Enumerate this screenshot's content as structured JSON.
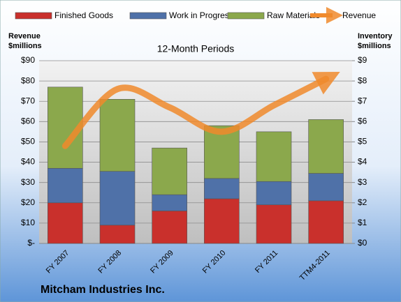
{
  "chart_data": {
    "type": "stacked-bar-line",
    "title": "12-Month Periods",
    "company": "Mitcham Industries Inc.",
    "y_label": "Revenue $millions",
    "y2_label": "Inventory $millions",
    "categories": [
      "FY 2007",
      "FY 2008",
      "FY 2009",
      "FY 2010",
      "FY 2011",
      "TTM4-2011"
    ],
    "series": [
      {
        "name": "Finished Goods",
        "color": "#c9302c",
        "type": "bar",
        "axis": "y2",
        "values": [
          2.0,
          0.9,
          1.6,
          2.2,
          1.9,
          2.1
        ]
      },
      {
        "name": "Work in Progress",
        "color": "#4f71a8",
        "type": "bar",
        "axis": "y2",
        "values": [
          1.7,
          2.65,
          0.8,
          1.0,
          1.15,
          1.35
        ]
      },
      {
        "name": "Raw Materials",
        "color": "#8ba84c",
        "type": "bar",
        "axis": "y2",
        "values": [
          4.0,
          3.55,
          2.3,
          2.6,
          2.45,
          2.65
        ]
      },
      {
        "name": "Revenue",
        "color": "#f08a2c",
        "type": "line",
        "axis": "y",
        "values": [
          48,
          76,
          67,
          55,
          68,
          81
        ]
      }
    ],
    "ylim": [
      0,
      90
    ],
    "yticks": [
      {
        "value": 0,
        "label": "$-"
      },
      {
        "value": 10,
        "label": "$10"
      },
      {
        "value": 20,
        "label": "$20"
      },
      {
        "value": 30,
        "label": "$30"
      },
      {
        "value": 40,
        "label": "$40"
      },
      {
        "value": 50,
        "label": "$50"
      },
      {
        "value": 60,
        "label": "$60"
      },
      {
        "value": 70,
        "label": "$70"
      },
      {
        "value": 80,
        "label": "$80"
      },
      {
        "value": 90,
        "label": "$90"
      }
    ],
    "y2lim": [
      0,
      9
    ],
    "y2ticks": [
      {
        "value": 0,
        "label": "$0"
      },
      {
        "value": 1,
        "label": "$1"
      },
      {
        "value": 2,
        "label": "$2"
      },
      {
        "value": 3,
        "label": "$3"
      },
      {
        "value": 4,
        "label": "$4"
      },
      {
        "value": 5,
        "label": "$5"
      },
      {
        "value": 6,
        "label": "$6"
      },
      {
        "value": 7,
        "label": "$7"
      },
      {
        "value": 8,
        "label": "$8"
      },
      {
        "value": 9,
        "label": "$9"
      }
    ],
    "grid": true
  }
}
